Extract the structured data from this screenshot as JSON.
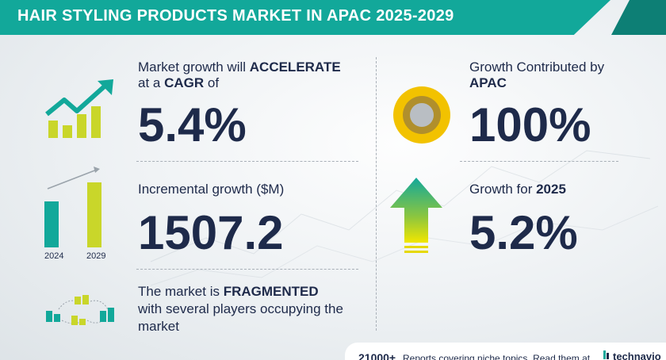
{
  "header": {
    "title": "HAIR STYLING PRODUCTS MARKET IN APAC 2025-2029"
  },
  "cagr": {
    "line1_prefix": "Market growth will ",
    "line1_strong": "ACCELERATE",
    "line2_prefix": "at a ",
    "line2_strong": "CAGR",
    "line2_suffix": " of",
    "value": "5.4%"
  },
  "incremental": {
    "label": "Incremental growth ($M)",
    "value": "1507.2",
    "bars": [
      {
        "year": "2024",
        "level": 0.6
      },
      {
        "year": "2029",
        "level": 0.85
      }
    ]
  },
  "fragmented": {
    "line1_prefix": "The market is ",
    "line1_strong": "FRAGMENTED",
    "line2": "with several players occupying the",
    "line3": "market"
  },
  "contribution": {
    "line1": "Growth Contributed by",
    "line2_strong": "APAC",
    "value": "100%"
  },
  "growth_year": {
    "prefix": "Growth for ",
    "year": "2025",
    "value": "5.2%"
  },
  "footer": {
    "count": "21000+",
    "text": "Reports covering niche topics. Read them at",
    "brand": "technavio"
  },
  "icons": {
    "growth_chart": "growth-chart-icon",
    "donut": "donut-icon",
    "up_arrow": "up-arrow-icon",
    "buildings": "buildings-network-icon",
    "brand_logo": "technavio-logo-icon"
  },
  "colors": {
    "teal": "#12a89a",
    "yellow": "#c9d62a",
    "gold": "#f2c200",
    "navy": "#1e2a4a"
  }
}
